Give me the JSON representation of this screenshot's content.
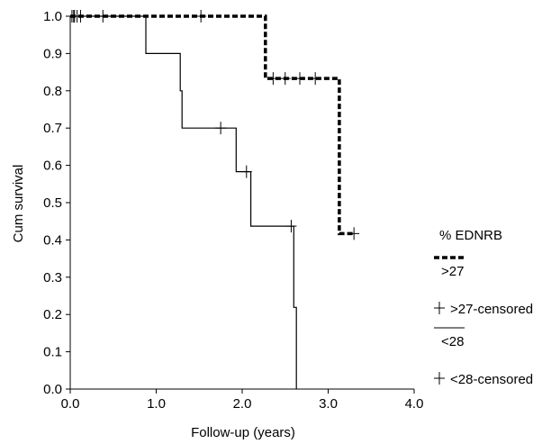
{
  "chart_data": {
    "type": "line",
    "subtype": "kaplan-meier",
    "xlabel": "Follow-up (years)",
    "ylabel": "Cum survival",
    "xlim": [
      0.0,
      4.0
    ],
    "ylim": [
      0.0,
      1.0
    ],
    "x_ticks": [
      "0.0",
      "1.0",
      "2.0",
      "3.0",
      "4.0"
    ],
    "y_ticks": [
      "0.0",
      "0.1",
      "0.2",
      "0.3",
      "0.4",
      "0.5",
      "0.6",
      "0.7",
      "0.8",
      "0.9",
      "1.0"
    ],
    "grid": false,
    "legend_title": "% EDNRB",
    "legend_position": "right",
    "series": [
      {
        "name": ">27",
        "style": "dashed",
        "color": "#000000",
        "steps": [
          [
            0.0,
            1.0
          ],
          [
            2.27,
            1.0
          ],
          [
            2.27,
            0.833
          ],
          [
            3.13,
            0.833
          ],
          [
            3.13,
            0.417
          ],
          [
            3.3,
            0.417
          ]
        ],
        "censored_name": ">27-censored",
        "censored": [
          [
            0.02,
            1.0
          ],
          [
            0.05,
            1.0
          ],
          [
            0.08,
            1.0
          ],
          [
            0.12,
            1.0
          ],
          [
            0.38,
            1.0
          ],
          [
            1.52,
            1.0
          ],
          [
            2.36,
            0.833
          ],
          [
            2.5,
            0.833
          ],
          [
            2.67,
            0.833
          ],
          [
            2.85,
            0.833
          ],
          [
            3.3,
            0.417
          ]
        ]
      },
      {
        "name": "<28",
        "style": "solid",
        "color": "#000000",
        "steps": [
          [
            0.0,
            1.0
          ],
          [
            0.88,
            1.0
          ],
          [
            0.88,
            0.9
          ],
          [
            1.28,
            0.9
          ],
          [
            1.28,
            0.8
          ],
          [
            1.3,
            0.8
          ],
          [
            1.3,
            0.7
          ],
          [
            1.93,
            0.7
          ],
          [
            1.93,
            0.583
          ],
          [
            2.1,
            0.583
          ],
          [
            2.1,
            0.437
          ],
          [
            2.6,
            0.437
          ],
          [
            2.6,
            0.219
          ],
          [
            2.63,
            0.219
          ],
          [
            2.63,
            0.0
          ]
        ],
        "censored_name": "<28-censored",
        "censored": [
          [
            0.04,
            1.0
          ],
          [
            1.75,
            0.7
          ],
          [
            2.05,
            0.583
          ],
          [
            2.57,
            0.437
          ]
        ]
      }
    ],
    "legend": [
      {
        "label": ">27",
        "kind": "dashed-line"
      },
      {
        "label": ">27-censored",
        "kind": "censor-mark"
      },
      {
        "label": "<28",
        "kind": "solid-line"
      },
      {
        "label": "<28-censored",
        "kind": "censor-mark"
      }
    ]
  }
}
